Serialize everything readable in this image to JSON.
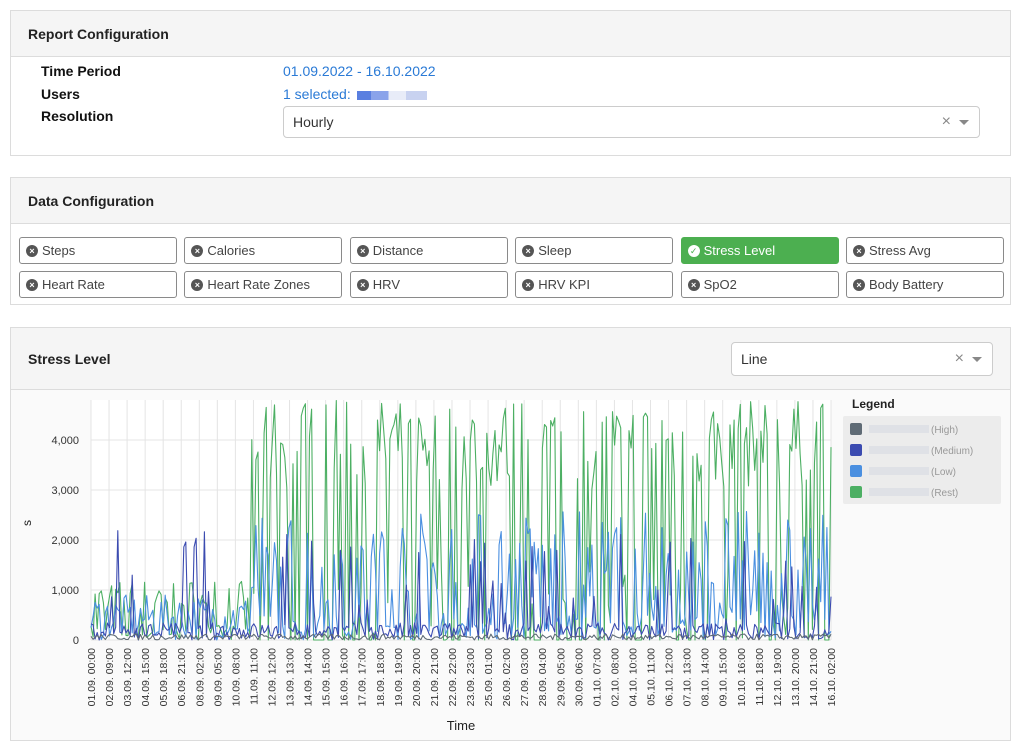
{
  "report": {
    "title": "Report Configuration",
    "time_period_label": "Time Period",
    "time_period_value": "01.09.2022 - 16.10.2022",
    "users_label": "Users",
    "users_value": "1 selected:",
    "resolution_label": "Resolution",
    "resolution_value": "Hourly",
    "clear_symbol": "×"
  },
  "data_config": {
    "title": "Data Configuration",
    "metrics": [
      {
        "label": "Steps",
        "active": false
      },
      {
        "label": "Calories",
        "active": false
      },
      {
        "label": "Distance",
        "active": false
      },
      {
        "label": "Sleep",
        "active": false
      },
      {
        "label": "Stress Level",
        "active": true
      },
      {
        "label": "Stress Avg",
        "active": false
      },
      {
        "label": "Heart Rate",
        "active": false
      },
      {
        "label": "Heart Rate Zones",
        "active": false
      },
      {
        "label": "HRV",
        "active": false
      },
      {
        "label": "HRV KPI",
        "active": false
      },
      {
        "label": "SpO2",
        "active": false
      },
      {
        "label": "Body Battery",
        "active": false
      }
    ]
  },
  "chart_panel": {
    "title": "Stress Level",
    "chart_type_value": "Line",
    "clear_symbol": "×"
  },
  "colors": {
    "accent_link": "#2a7ad6",
    "active_green": "#4caf50",
    "high": "#5f6b75",
    "medium": "#3b4bb0",
    "low": "#4a8fe0",
    "rest": "#4caf63"
  },
  "chart_data": {
    "type": "line",
    "xlabel": "Time",
    "ylabel": "s",
    "ylim": [
      0,
      4800
    ],
    "yticks": [
      0,
      1000,
      2000,
      3000,
      4000
    ],
    "ytick_labels": [
      "0",
      "1,000",
      "2,000",
      "3,000",
      "4,000"
    ],
    "xtick_labels": [
      "01.09. 00:00",
      "02.09. 09:00",
      "03.09. 12:00",
      "04.09. 15:00",
      "05.09. 18:00",
      "06.09. 21:00",
      "08.09. 02:00",
      "09.09. 05:00",
      "10.09. 08:00",
      "11.09. 11:00",
      "12.09. 12:00",
      "13.09. 13:00",
      "14.09. 14:00",
      "15.09. 15:00",
      "16.09. 16:00",
      "17.09. 17:00",
      "18.09. 18:00",
      "19.09. 19:00",
      "20.09. 20:00",
      "21.09. 21:00",
      "22.09. 22:00",
      "23.09. 23:00",
      "25.09. 01:00",
      "26.09. 02:00",
      "27.09. 03:00",
      "28.09. 04:00",
      "29.09. 05:00",
      "30.09. 06:00",
      "01.10. 07:00",
      "02.10. 08:00",
      "04.10. 10:00",
      "05.10. 11:00",
      "06.10. 12:00",
      "07.10. 13:00",
      "08.10. 14:00",
      "09.10. 15:00",
      "10.10. 16:00",
      "11.10. 18:00",
      "12.10. 19:00",
      "13.10. 20:00",
      "14.10. 21:00",
      "16.10. 02:00"
    ],
    "legend_title": "Legend",
    "legend_placement": "right",
    "grid": true,
    "series": [
      {
        "name": "(High)",
        "color": "#5f6b75"
      },
      {
        "name": "(Medium)",
        "color": "#3b4bb0"
      },
      {
        "name": "(Low)",
        "color": "#4a8fe0"
      },
      {
        "name": "(Rest)",
        "color": "#4caf63"
      }
    ]
  }
}
